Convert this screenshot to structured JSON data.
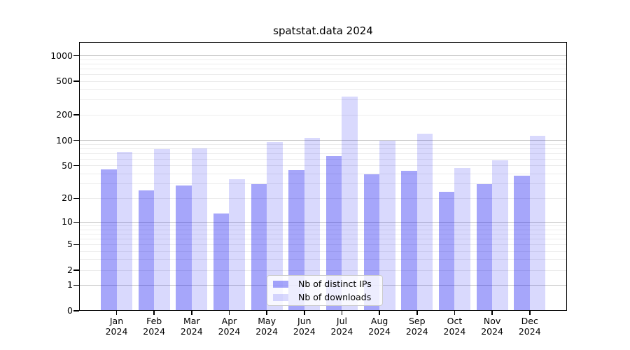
{
  "chart_data": {
    "type": "bar",
    "title": "spatstat.data 2024",
    "categories": [
      "Jan",
      "Feb",
      "Mar",
      "Apr",
      "May",
      "Jun",
      "Jul",
      "Aug",
      "Sep",
      "Oct",
      "Nov",
      "Dec"
    ],
    "x_tick_year": "2024",
    "series": [
      {
        "name": "Nb of distinct IPs",
        "color": "#0000F059",
        "values": [
          45,
          25,
          29,
          13,
          30,
          44,
          65,
          39,
          43,
          24,
          30,
          38
        ]
      },
      {
        "name": "Nb of downloads",
        "color": "#0000F026",
        "values": [
          73,
          78,
          81,
          34,
          95,
          107,
          330,
          100,
          120,
          47,
          58,
          113
        ]
      }
    ],
    "y_axis": {
      "scale": "log1p",
      "ticks": [
        0,
        1,
        2,
        5,
        10,
        20,
        50,
        100,
        200,
        500,
        1000
      ],
      "max": 1448,
      "major_gridlines": [
        1,
        10,
        100,
        1000
      ],
      "minor_gridline_decades": [
        1,
        10,
        100
      ]
    },
    "grid": true,
    "legend_position": "bottom-center",
    "colors": {
      "major_grid": "#c6c6c6",
      "minor_grid": "#ececec",
      "axis": "#000000"
    }
  }
}
